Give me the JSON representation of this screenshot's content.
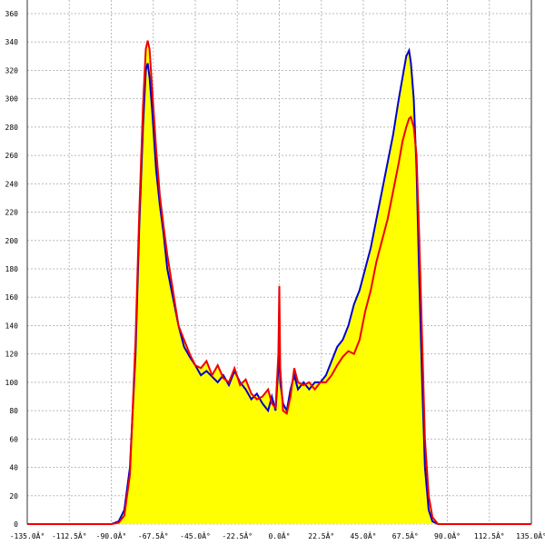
{
  "chart_data": {
    "type": "line",
    "area_fill": "#ffff00",
    "grid": true,
    "xlim": [
      -135,
      135
    ],
    "ylim": [
      0,
      360
    ],
    "xticks": [
      {
        "value": -135,
        "label": "-135.0Â°"
      },
      {
        "value": -112.5,
        "label": "-112.5Â°"
      },
      {
        "value": -90,
        "label": "-90.0Â°"
      },
      {
        "value": -67.5,
        "label": "-67.5Â°"
      },
      {
        "value": -45,
        "label": "-45.0Â°"
      },
      {
        "value": -22.5,
        "label": "-22.5Â°"
      },
      {
        "value": 0,
        "label": "0.0Â°"
      },
      {
        "value": 22.5,
        "label": "22.5Â°"
      },
      {
        "value": 45,
        "label": "45.0Â°"
      },
      {
        "value": 67.5,
        "label": "67.5Â°"
      },
      {
        "value": 90,
        "label": "90.0Â°"
      },
      {
        "value": 112.5,
        "label": "112.5Â°"
      },
      {
        "value": 135,
        "label": "135.0Â°"
      }
    ],
    "yticks": [
      0,
      20,
      40,
      60,
      80,
      100,
      120,
      140,
      160,
      180,
      200,
      220,
      240,
      260,
      280,
      300,
      320,
      340,
      360
    ],
    "x": [
      -135,
      -90,
      -86,
      -83,
      -80,
      -77,
      -75,
      -73,
      -71.5,
      -70.5,
      -69.5,
      -68,
      -66,
      -64,
      -62,
      -60,
      -57,
      -54,
      -51,
      -48,
      -45,
      -42,
      -39,
      -36,
      -33,
      -30,
      -27,
      -24,
      -21,
      -18,
      -15,
      -12,
      -9,
      -6,
      -4,
      -2,
      -0.5,
      0,
      0.5,
      2,
      4,
      6,
      8,
      10,
      13,
      16,
      19,
      22,
      25,
      28,
      31,
      34,
      37,
      40,
      43,
      46,
      49,
      52,
      55,
      58,
      61,
      64,
      66,
      68,
      69.5,
      70.5,
      72,
      73.5,
      75,
      76.5,
      78,
      80,
      82,
      85,
      90,
      135
    ],
    "series": [
      {
        "color": "#0000cc",
        "values": [
          0,
          0,
          2,
          10,
          40,
          120,
          210,
          280,
          320,
          325,
          315,
          290,
          250,
          225,
          205,
          180,
          160,
          140,
          125,
          118,
          112,
          105,
          108,
          104,
          100,
          105,
          98,
          108,
          100,
          95,
          88,
          92,
          85,
          80,
          90,
          80,
          110,
          130,
          100,
          85,
          80,
          95,
          105,
          95,
          100,
          95,
          100,
          100,
          105,
          115,
          125,
          130,
          140,
          155,
          165,
          180,
          195,
          215,
          235,
          255,
          275,
          300,
          315,
          330,
          334,
          325,
          300,
          250,
          170,
          100,
          40,
          10,
          2,
          0,
          0,
          0
        ]
      },
      {
        "color": "#ee0000",
        "values": [
          0,
          0,
          1,
          6,
          35,
          130,
          220,
          295,
          335,
          341,
          335,
          305,
          265,
          232,
          210,
          190,
          165,
          140,
          130,
          120,
          112,
          110,
          115,
          105,
          112,
          103,
          100,
          110,
          98,
          102,
          92,
          88,
          90,
          95,
          85,
          82,
          120,
          168,
          110,
          80,
          78,
          90,
          110,
          100,
          98,
          100,
          95,
          100,
          100,
          105,
          112,
          118,
          122,
          120,
          130,
          150,
          165,
          185,
          200,
          215,
          235,
          255,
          270,
          280,
          286,
          287,
          280,
          260,
          200,
          130,
          60,
          20,
          5,
          0,
          0,
          0
        ]
      }
    ]
  }
}
